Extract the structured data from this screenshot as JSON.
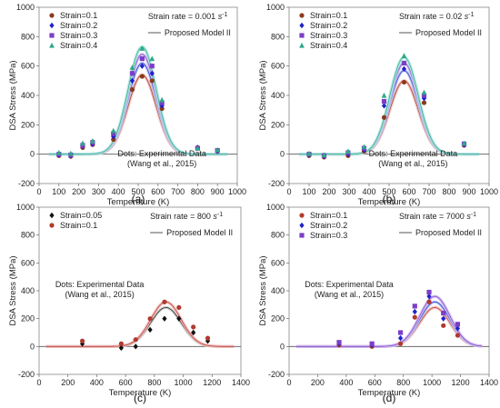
{
  "chart_data": [
    {
      "panel_label": "(a)",
      "type": "scatter",
      "xlabel": "Temperature (K)",
      "ylabel": "DSA Stress (MPa)",
      "xlim": [
        0,
        1000
      ],
      "ylim": [
        -200,
        1000
      ],
      "xticks": [
        0,
        100,
        200,
        300,
        400,
        500,
        600,
        700,
        800,
        900,
        1000
      ],
      "yticks": [
        -200,
        0,
        200,
        400,
        600,
        800,
        1000
      ],
      "annotation_rate_prefix": "Strain rate = 0.001",
      "annotation_rate_unit": "s",
      "annotation_rate_exp": "-1",
      "note_line1": "Dots: Experimental Data",
      "note_line2": "(Wang et al., 2015)",
      "model_label": "Proposed Model II",
      "legend_position": "top-left",
      "grid": false,
      "series": [
        {
          "name": "Strain=0.1",
          "marker": "circle",
          "color": "#8B3A1E",
          "fill": "#f4b6b6",
          "x": [
            100,
            160,
            220,
            270,
            375,
            470,
            520,
            570,
            620,
            800,
            900
          ],
          "y": [
            -10,
            -15,
            45,
            65,
            100,
            440,
            530,
            500,
            310,
            45,
            20
          ],
          "curve_peak": 540,
          "curve_center": 520,
          "curve_width": 100
        },
        {
          "name": "Strain=0.2",
          "marker": "diamond",
          "color": "#2222cc",
          "fill": "#b7c6f0",
          "x": [
            100,
            160,
            220,
            270,
            375,
            470,
            520,
            570,
            620,
            800,
            900
          ],
          "y": [
            -5,
            -10,
            55,
            70,
            120,
            500,
            600,
            550,
            330,
            45,
            20
          ],
          "curve_peak": 620,
          "curve_center": 520,
          "curve_width": 100
        },
        {
          "name": "Strain=0.3",
          "marker": "square",
          "color": "#7B3FC7",
          "fill": "#d2b8f0",
          "x": [
            100,
            160,
            220,
            270,
            375,
            470,
            520,
            570,
            620,
            800,
            900
          ],
          "y": [
            0,
            -5,
            60,
            80,
            140,
            550,
            650,
            600,
            350,
            40,
            25
          ],
          "curve_peak": 680,
          "curve_center": 520,
          "curve_width": 100
        },
        {
          "name": "Strain=0.4",
          "marker": "triangle",
          "color": "#2EA88A",
          "fill": "#a9e7dc",
          "x": [
            100,
            160,
            220,
            270,
            375,
            470,
            520,
            570,
            620,
            800,
            900
          ],
          "y": [
            10,
            5,
            75,
            90,
            160,
            590,
            720,
            650,
            370,
            40,
            30
          ],
          "curve_peak": 730,
          "curve_center": 520,
          "curve_width": 100
        }
      ]
    },
    {
      "panel_label": "(b)",
      "type": "scatter",
      "xlabel": "Temperature (K)",
      "ylabel": "DSA Stress (MPa)",
      "xlim": [
        0,
        1000
      ],
      "ylim": [
        -200,
        1000
      ],
      "xticks": [
        0,
        100,
        200,
        300,
        400,
        500,
        600,
        700,
        800,
        900,
        1000
      ],
      "yticks": [
        -200,
        0,
        200,
        400,
        600,
        800,
        1000
      ],
      "annotation_rate_prefix": "Strain rate = 0.02",
      "annotation_rate_unit": "s",
      "annotation_rate_exp": "-1",
      "note_line1": "Dots: Experimental Data",
      "note_line2": "(Wang et al., 2015)",
      "model_label": "Proposed Model II",
      "legend_position": "top-left",
      "grid": false,
      "series": [
        {
          "name": "Strain=0.1",
          "marker": "circle",
          "color": "#8B3A1E",
          "fill": "#f4b6b6",
          "x": [
            100,
            175,
            295,
            375,
            475,
            575,
            675,
            875
          ],
          "y": [
            -10,
            -20,
            -10,
            20,
            250,
            490,
            350,
            60
          ],
          "curve_peak": 500,
          "curve_center": 575,
          "curve_width": 100
        },
        {
          "name": "Strain=0.2",
          "marker": "diamond",
          "color": "#2222cc",
          "fill": "#b7c6f0",
          "x": [
            100,
            175,
            295,
            375,
            475,
            575,
            675,
            875
          ],
          "y": [
            -5,
            -15,
            0,
            30,
            330,
            580,
            380,
            65
          ],
          "curve_peak": 570,
          "curve_center": 575,
          "curve_width": 100
        },
        {
          "name": "Strain=0.3",
          "marker": "square",
          "color": "#7B3FC7",
          "fill": "#d2b8f0",
          "x": [
            100,
            175,
            295,
            375,
            475,
            575,
            675,
            875
          ],
          "y": [
            0,
            -10,
            10,
            40,
            360,
            620,
            400,
            70
          ],
          "curve_peak": 620,
          "curve_center": 575,
          "curve_width": 100
        },
        {
          "name": "Strain=0.4",
          "marker": "triangle",
          "color": "#2EA88A",
          "fill": "#a9e7dc",
          "x": [
            100,
            175,
            295,
            375,
            475,
            575,
            675,
            875
          ],
          "y": [
            5,
            -5,
            20,
            50,
            400,
            670,
            420,
            75
          ],
          "curve_peak": 660,
          "curve_center": 575,
          "curve_width": 100
        }
      ]
    },
    {
      "panel_label": "(c)",
      "type": "scatter",
      "xlabel": "Temperature (K)",
      "ylabel": "DSA Stress (MPa)",
      "xlim": [
        0,
        1400
      ],
      "ylim": [
        -200,
        1000
      ],
      "xticks": [
        0,
        200,
        400,
        600,
        800,
        1000,
        1200,
        1400
      ],
      "yticks": [
        -200,
        0,
        200,
        400,
        600,
        800,
        1000
      ],
      "annotation_rate_prefix": "Strain rate = 800",
      "annotation_rate_unit": "s",
      "annotation_rate_exp": "-1",
      "note_line1": "Dots: Experimental Data",
      "note_line2": "(Wang et al., 2015)",
      "model_label": "Proposed Model II",
      "legend_position": "top-left",
      "grid": false,
      "series": [
        {
          "name": "Strain=0.05",
          "marker": "diamond",
          "color": "#111111",
          "fill": "#cccccc",
          "x": [
            300,
            570,
            670,
            770,
            870,
            970,
            1070,
            1170
          ],
          "y": [
            20,
            -10,
            0,
            120,
            200,
            200,
            100,
            40
          ],
          "curve_peak": 280,
          "curve_center": 880,
          "curve_width": 150
        },
        {
          "name": "Strain=0.1",
          "marker": "circle",
          "color": "#B03A2E",
          "fill": "#f4b6b6",
          "x": [
            300,
            570,
            670,
            770,
            870,
            970,
            1070,
            1170
          ],
          "y": [
            40,
            20,
            50,
            200,
            320,
            280,
            140,
            60
          ],
          "curve_peak": 320,
          "curve_center": 880,
          "curve_width": 150
        }
      ]
    },
    {
      "panel_label": "(d)",
      "type": "scatter",
      "xlabel": "Temperature (K)",
      "ylabel": "DSA Stress (MPa)",
      "xlim": [
        0,
        1400
      ],
      "ylim": [
        -200,
        1000
      ],
      "xticks": [
        0,
        200,
        400,
        600,
        800,
        1000,
        1200,
        1400
      ],
      "yticks": [
        -200,
        0,
        200,
        400,
        600,
        800,
        1000
      ],
      "annotation_rate_prefix": "Strain rate = 7000",
      "annotation_rate_unit": "s",
      "annotation_rate_exp": "-1",
      "note_line1": "Dots: Experimental Data",
      "note_line2": "(Wang et al., 2015)",
      "model_label": "Proposed Model II",
      "legend_position": "top-left",
      "grid": false,
      "series": [
        {
          "name": "Strain=0.1",
          "marker": "circle",
          "color": "#B03A2E",
          "fill": "#f4b6b6",
          "x": [
            350,
            580,
            780,
            880,
            980,
            1080,
            1180
          ],
          "y": [
            10,
            0,
            20,
            210,
            320,
            150,
            80
          ],
          "curve_peak": 280,
          "curve_center": 1020,
          "curve_width": 150
        },
        {
          "name": "Strain=0.2",
          "marker": "diamond",
          "color": "#2222cc",
          "fill": "#b7c6f0",
          "x": [
            350,
            580,
            780,
            880,
            980,
            1080,
            1180
          ],
          "y": [
            20,
            10,
            60,
            250,
            360,
            200,
            130
          ],
          "curve_peak": 320,
          "curve_center": 1020,
          "curve_width": 150
        },
        {
          "name": "Strain=0.3",
          "marker": "square",
          "color": "#7B3FC7",
          "fill": "#d2b8f0",
          "x": [
            350,
            580,
            780,
            880,
            980,
            1080,
            1180
          ],
          "y": [
            30,
            20,
            100,
            290,
            390,
            240,
            160
          ],
          "curve_peak": 360,
          "curve_center": 1020,
          "curve_width": 150
        }
      ]
    }
  ]
}
